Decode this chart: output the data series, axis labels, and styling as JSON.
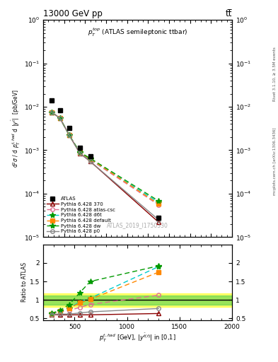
{
  "title_top": "13000 GeV pp",
  "title_right": "tt̅",
  "annotation": "$p_T^{top}$ (ATLAS semileptonic ttbar)",
  "watermark": "ATLAS_2019_I1750330",
  "rivet_label": "Rivet 3.1.10, ≥ 3.5M events",
  "mcplots_label": "mcplots.cern.ch [arXiv:1306.3436]",
  "ylabel_main": "d$^2\\sigma$ / d $p_T^{t,had}$ d |$y^{\\bar{t}}$|  [pb/GeV]",
  "ylabel_ratio": "Ratio to ATLAS",
  "xlabel": "$p_T^{t,had}$ [GeV], |$y^{\\bar{t}bar(t)}$| in [0,1]",
  "xlim": [
    200,
    2000
  ],
  "ylim_main": [
    1e-05,
    1.0
  ],
  "ylim_ratio": [
    0.45,
    2.5
  ],
  "x_data": [
    280,
    360,
    450,
    550,
    650,
    1300
  ],
  "atlas_y": [
    0.014,
    0.0082,
    0.0032,
    0.00115,
    0.00072,
    2.8e-05
  ],
  "pythia_370_y": [
    0.0075,
    0.0055,
    0.0022,
    0.00085,
    0.00055,
    2.2e-05
  ],
  "pythia_atlas_csc_y": [
    0.0075,
    0.0055,
    0.0022,
    0.00088,
    0.0006,
    5.5e-05
  ],
  "pythia_d6t_y": [
    0.0075,
    0.0055,
    0.0022,
    0.00088,
    0.00062,
    6.3e-05
  ],
  "pythia_default_y": [
    0.0075,
    0.0055,
    0.0022,
    0.00088,
    0.00063,
    5.8e-05
  ],
  "pythia_dw_y": [
    0.0075,
    0.0055,
    0.0022,
    0.0009,
    0.00065,
    6.8e-05
  ],
  "pythia_p0_y": [
    0.0075,
    0.0055,
    0.0022,
    0.00085,
    0.00055,
    2.5e-05
  ],
  "ratio_370": [
    0.61,
    0.6,
    0.6,
    0.6,
    0.6,
    0.635
  ],
  "ratio_atlas_csc": [
    0.62,
    0.68,
    0.72,
    0.8,
    0.88,
    1.13
  ],
  "ratio_d6t": [
    0.63,
    0.7,
    0.78,
    0.95,
    1.05,
    1.9
  ],
  "ratio_default": [
    0.63,
    0.7,
    0.78,
    0.92,
    1.02,
    1.75
  ],
  "ratio_dw": [
    0.64,
    0.72,
    0.88,
    1.2,
    1.5,
    1.92
  ],
  "ratio_p0": [
    0.61,
    0.62,
    0.62,
    0.65,
    0.68,
    0.77
  ],
  "band_yellow_x1": 200,
  "band_yellow_x2": 620,
  "band_green_x1": 620,
  "band_green_x2": 2000,
  "band_yellow_ylo": 0.82,
  "band_yellow_yhi": 1.18,
  "band_green_ylo": 0.88,
  "band_green_yhi": 1.12
}
